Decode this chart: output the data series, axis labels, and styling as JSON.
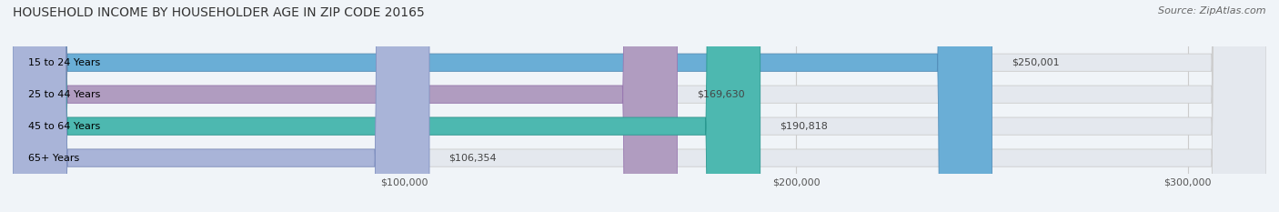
{
  "title": "HOUSEHOLD INCOME BY HOUSEHOLDER AGE IN ZIP CODE 20165",
  "source": "Source: ZipAtlas.com",
  "categories": [
    "15 to 24 Years",
    "25 to 44 Years",
    "45 to 64 Years",
    "65+ Years"
  ],
  "values": [
    250001,
    169630,
    190818,
    106354
  ],
  "bar_colors": [
    "#6aaed6",
    "#b09cc0",
    "#4db8b0",
    "#a9b4d8"
  ],
  "bar_edge_colors": [
    "#5590bb",
    "#9878b0",
    "#2a9890",
    "#8090c0"
  ],
  "value_labels": [
    "$250,001",
    "$169,630",
    "$190,818",
    "$106,354"
  ],
  "xlim": [
    0,
    320000
  ],
  "xticks": [
    100000,
    200000,
    300000
  ],
  "xtick_labels": [
    "$100,000",
    "$200,000",
    "$300,000"
  ],
  "bg_color": "#f0f4f8",
  "bar_bg_color": "#e4e8ee",
  "title_fontsize": 10,
  "source_fontsize": 8,
  "label_fontsize": 8,
  "tick_fontsize": 8
}
